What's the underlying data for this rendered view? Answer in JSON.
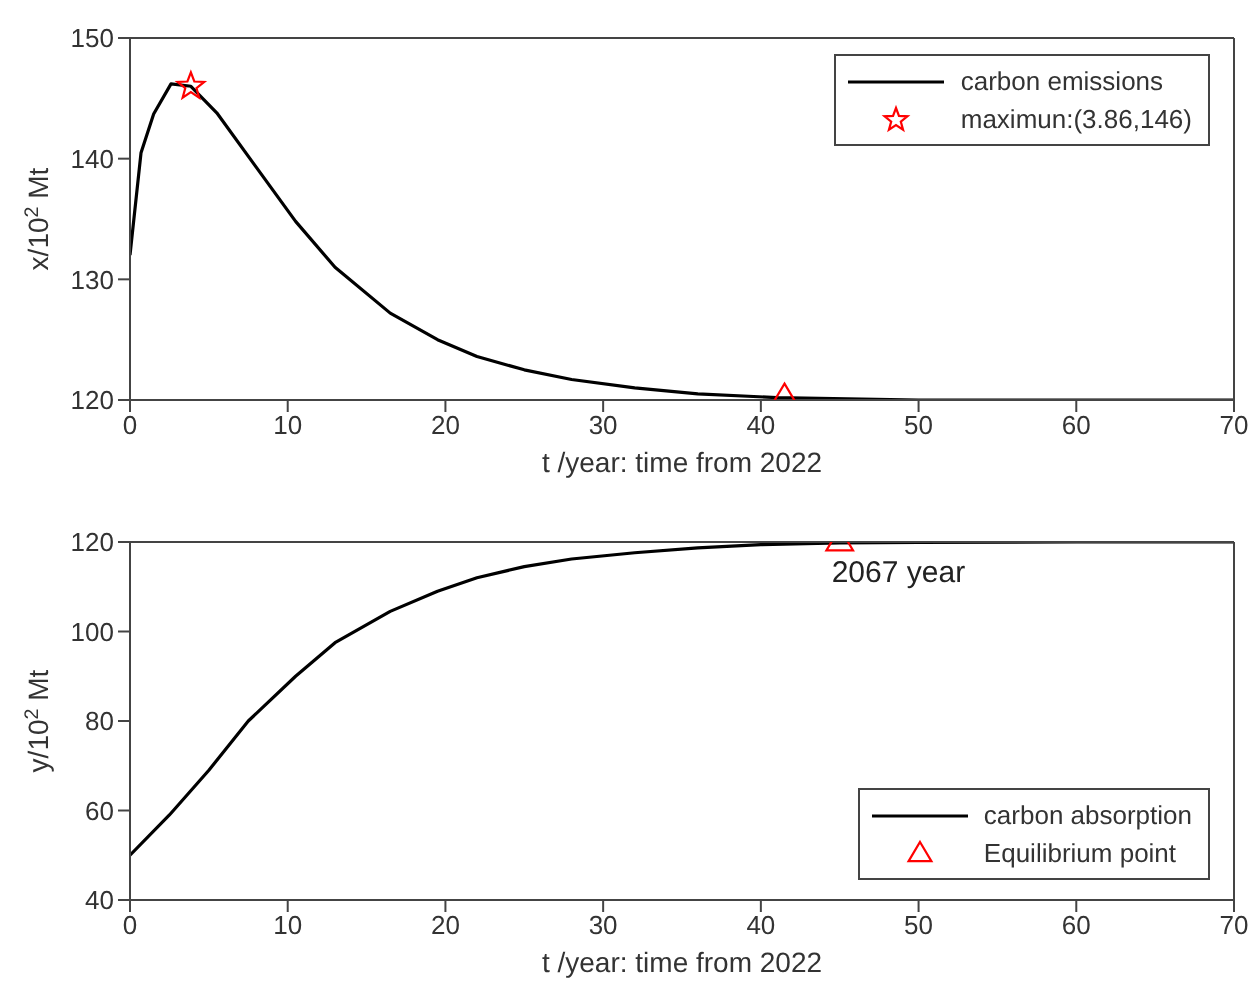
{
  "chart_data": [
    {
      "type": "line",
      "xlabel": "t /year: time from 2022",
      "ylabel": "x/10$^{2}$ Mt",
      "xlim": [
        0,
        70
      ],
      "xticks": [
        0,
        10,
        20,
        30,
        40,
        50,
        60,
        70
      ],
      "ylim": [
        120,
        150
      ],
      "yticks": [
        120,
        130,
        140,
        150
      ],
      "grid": false,
      "legend": "top right",
      "series": [
        {
          "name": "carbon emissions",
          "type": "line",
          "color": "#000000",
          "marker": "none",
          "x": [
            0,
            0.7,
            1.5,
            2.6,
            3.86,
            5.5,
            8,
            10.5,
            13,
            16.5,
            19.5,
            22,
            25,
            28,
            32,
            36,
            41,
            50,
            60,
            70
          ],
          "values": [
            132,
            140.5,
            143.7,
            146.2,
            146,
            143.8,
            139.3,
            134.8,
            131,
            127.2,
            125,
            123.6,
            122.5,
            121.7,
            121,
            120.5,
            120.2,
            120,
            120,
            120
          ]
        },
        {
          "name": "maximun:(3.86,146)",
          "type": "scatter",
          "color": "#ff0000",
          "marker": "star",
          "x": [
            3.86
          ],
          "values": [
            146
          ]
        },
        {
          "type": "scatter",
          "color": "#ff0000",
          "marker": "triangle",
          "x": [
            41.5
          ],
          "values": [
            120.2
          ]
        }
      ]
    },
    {
      "type": "line",
      "xlabel": "t /year: time from 2022",
      "ylabel": "y/10$^{2}$ Mt",
      "xlim": [
        0,
        70
      ],
      "xticks": [
        0,
        10,
        20,
        30,
        40,
        50,
        60,
        70
      ],
      "ylim": [
        40,
        120
      ],
      "yticks": [
        40,
        60,
        80,
        100,
        120
      ],
      "grid": false,
      "legend": "bottom right",
      "annotations": [
        {
          "text": "2067 year",
          "x": 45,
          "y": 120
        }
      ],
      "series": [
        {
          "name": "carbon absorption",
          "type": "line",
          "color": "#000000",
          "marker": "none",
          "x": [
            0,
            2.5,
            5,
            7.5,
            10.5,
            13,
            16.5,
            19.5,
            22,
            25,
            28,
            32,
            36,
            40,
            45,
            50,
            60,
            70
          ],
          "values": [
            50,
            59,
            69,
            80,
            90,
            97.5,
            104.5,
            109,
            112,
            114.5,
            116.2,
            117.6,
            118.7,
            119.4,
            119.8,
            119.9,
            120,
            120
          ]
        },
        {
          "name": "Equilibrium point",
          "type": "scatter",
          "color": "#ff0000",
          "marker": "triangle",
          "x": [
            45
          ],
          "values": [
            120
          ]
        }
      ]
    }
  ]
}
